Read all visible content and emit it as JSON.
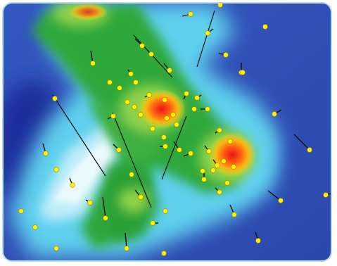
{
  "map": {
    "kind": "interpolated heat map with point markers and direction ticks",
    "legend": "none visible",
    "colors": {
      "frame_border": "#b7dce8",
      "background_blue": "#2f4fb5",
      "deep_blue": "#1f2f9c",
      "cyan": "#5fd0ee",
      "light_cyan": "#bfeefa",
      "green": "#2fa83a",
      "light_green": "#8fd24a",
      "yellow": "#f1e21a",
      "orange": "#ff8a10",
      "red": "#e8161a",
      "marker_fill": "#fff200",
      "marker_stroke": "#a88a00",
      "vector_stroke": "#111111"
    },
    "hotspots": [
      {
        "name": "hotspot-upper",
        "level": "high"
      },
      {
        "name": "hotspot-lower",
        "level": "high"
      }
    ]
  }
}
